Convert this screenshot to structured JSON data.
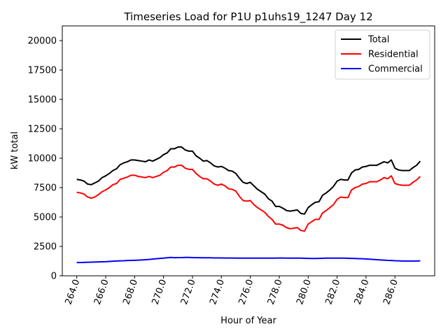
{
  "chart_data": {
    "type": "line",
    "title": "Timeseries Load for P1U p1uhs19_1247  Day 12",
    "xlabel": "Hour of Year",
    "ylabel": "kW total",
    "xlim": [
      263.0,
      288.75
    ],
    "ylim": [
      0,
      21250
    ],
    "xticks": [
      264.0,
      266.0,
      268.0,
      270.0,
      272.0,
      274.0,
      276.0,
      278.0,
      280.0,
      282.0,
      284.0,
      286.0
    ],
    "xtick_labels": [
      "264.0",
      "266.0",
      "268.0",
      "270.0",
      "272.0",
      "274.0",
      "276.0",
      "278.0",
      "280.0",
      "282.0",
      "284.0",
      "286.0"
    ],
    "yticks": [
      0,
      2500,
      5000,
      7500,
      10000,
      12500,
      15000,
      17500,
      20000
    ],
    "ytick_labels": [
      "0",
      "2500",
      "5000",
      "7500",
      "10000",
      "12500",
      "15000",
      "17500",
      "20000"
    ],
    "legend_position": "top-right",
    "x": [
      264.0,
      264.25,
      264.5,
      264.75,
      265.0,
      265.25,
      265.5,
      265.75,
      266.0,
      266.25,
      266.5,
      266.75,
      267.0,
      267.25,
      267.5,
      267.75,
      268.0,
      268.25,
      268.5,
      268.75,
      269.0,
      269.25,
      269.5,
      269.75,
      270.0,
      270.25,
      270.5,
      270.75,
      271.0,
      271.25,
      271.5,
      271.75,
      272.0,
      272.25,
      272.5,
      272.75,
      273.0,
      273.25,
      273.5,
      273.75,
      274.0,
      274.25,
      274.5,
      274.75,
      275.0,
      275.25,
      275.5,
      275.75,
      276.0,
      276.25,
      276.5,
      276.75,
      277.0,
      277.25,
      277.5,
      277.75,
      278.0,
      278.25,
      278.5,
      278.75,
      279.0,
      279.25,
      279.5,
      279.75,
      280.0,
      280.25,
      280.5,
      280.75,
      281.0,
      281.25,
      281.5,
      281.75,
      282.0,
      282.25,
      282.5,
      282.75,
      283.0,
      283.25,
      283.5,
      283.75,
      284.0,
      284.25,
      284.5,
      284.75,
      285.0,
      285.25,
      285.5,
      285.75,
      286.0,
      286.25,
      286.5,
      286.75,
      287.0,
      287.25,
      287.5,
      287.75
    ],
    "series": [
      {
        "name": "Total",
        "color": "#000000",
        "values": [
          8200,
          8150,
          8050,
          7800,
          7750,
          7900,
          8050,
          8350,
          8500,
          8700,
          8950,
          9100,
          9450,
          9600,
          9700,
          9850,
          9850,
          9800,
          9750,
          9700,
          9850,
          9750,
          9900,
          10050,
          10300,
          10450,
          10800,
          10800,
          10950,
          10950,
          10700,
          10600,
          10600,
          10200,
          10000,
          9750,
          9800,
          9600,
          9350,
          9250,
          9300,
          9150,
          8950,
          8900,
          8700,
          8300,
          7950,
          7850,
          7950,
          7650,
          7350,
          7150,
          6950,
          6550,
          6350,
          5900,
          5900,
          5750,
          5550,
          5500,
          5550,
          5600,
          5300,
          5250,
          5800,
          6050,
          6250,
          6300,
          6850,
          7050,
          7300,
          7600,
          8050,
          8200,
          8150,
          8150,
          8750,
          9000,
          9050,
          9250,
          9300,
          9400,
          9400,
          9400,
          9550,
          9700,
          9600,
          9850,
          9150,
          9000,
          8950,
          8950,
          8950,
          9200,
          9400,
          9750
        ]
      },
      {
        "name": "Residential",
        "color": "#ff0000",
        "values": [
          7100,
          7050,
          6950,
          6700,
          6600,
          6700,
          6900,
          7150,
          7300,
          7500,
          7750,
          7850,
          8200,
          8300,
          8400,
          8550,
          8550,
          8450,
          8400,
          8350,
          8450,
          8350,
          8450,
          8550,
          8800,
          8950,
          9250,
          9250,
          9400,
          9400,
          9150,
          9050,
          9050,
          8700,
          8450,
          8250,
          8250,
          8050,
          7800,
          7700,
          7800,
          7650,
          7400,
          7350,
          7200,
          6750,
          6400,
          6350,
          6400,
          6050,
          5800,
          5600,
          5400,
          5050,
          4800,
          4400,
          4400,
          4300,
          4100,
          4000,
          4050,
          4100,
          3850,
          3800,
          4400,
          4600,
          4800,
          4800,
          5350,
          5550,
          5800,
          6050,
          6500,
          6700,
          6650,
          6650,
          7300,
          7500,
          7600,
          7800,
          7850,
          8000,
          8000,
          8000,
          8150,
          8350,
          8250,
          8500,
          7850,
          7750,
          7700,
          7700,
          7700,
          7950,
          8150,
          8450
        ]
      },
      {
        "name": "Commercial",
        "color": "#0000ff",
        "values": [
          1120,
          1130,
          1140,
          1150,
          1160,
          1170,
          1180,
          1190,
          1200,
          1220,
          1240,
          1260,
          1270,
          1280,
          1300,
          1310,
          1320,
          1330,
          1350,
          1370,
          1390,
          1420,
          1450,
          1480,
          1500,
          1530,
          1560,
          1540,
          1550,
          1550,
          1560,
          1560,
          1550,
          1540,
          1540,
          1530,
          1530,
          1530,
          1520,
          1520,
          1520,
          1510,
          1510,
          1510,
          1500,
          1500,
          1500,
          1500,
          1500,
          1500,
          1500,
          1500,
          1500,
          1500,
          1500,
          1500,
          1510,
          1510,
          1500,
          1500,
          1500,
          1500,
          1500,
          1490,
          1480,
          1470,
          1470,
          1480,
          1490,
          1500,
          1500,
          1500,
          1500,
          1500,
          1500,
          1490,
          1480,
          1470,
          1460,
          1450,
          1430,
          1410,
          1390,
          1370,
          1350,
          1330,
          1310,
          1300,
          1280,
          1270,
          1260,
          1260,
          1260,
          1260,
          1260,
          1270
        ]
      }
    ]
  }
}
